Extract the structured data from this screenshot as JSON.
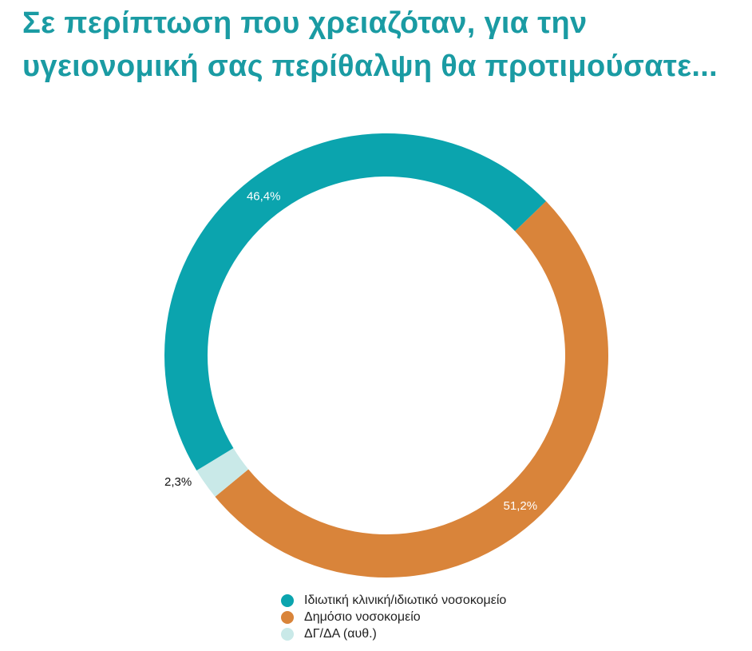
{
  "chart_data": {
    "type": "pie",
    "variant": "donut",
    "title": "Σε περίπτωση που χρειαζόταν, για την υγειονομική σας περίθαλψη θα προτιμούσατε...",
    "start_angle_deg": 46,
    "direction": "clockwise",
    "slices": [
      {
        "label": "Δημόσιο νοσοκομείο",
        "value": 51.2,
        "display": "51,2%",
        "color": "#d9843a",
        "label_color": "#ffffff",
        "label_position": "inside"
      },
      {
        "label": "ΔΓ/ΔΑ (αυθ.)",
        "value": 2.3,
        "display": "2,3%",
        "color": "#c9e9e8",
        "label_color": "#111111",
        "label_position": "outside"
      },
      {
        "label": "Ιδιωτική κλινική/ιδιωτικό νοσοκομείο",
        "value": 46.4,
        "display": "46,4%",
        "color": "#0ba4ae",
        "label_color": "#ffffff",
        "label_position": "inside"
      }
    ],
    "legend": {
      "placement": "bottom",
      "entries": [
        {
          "label": "Ιδιωτική κλινική/ιδιωτικό νοσοκομείο",
          "color": "#0ba4ae"
        },
        {
          "label": "Δημόσιο νοσοκομείο",
          "color": "#d9843a"
        },
        {
          "label": "ΔΓ/ΔΑ (αυθ.)",
          "color": "#c9e9e8"
        }
      ]
    }
  }
}
